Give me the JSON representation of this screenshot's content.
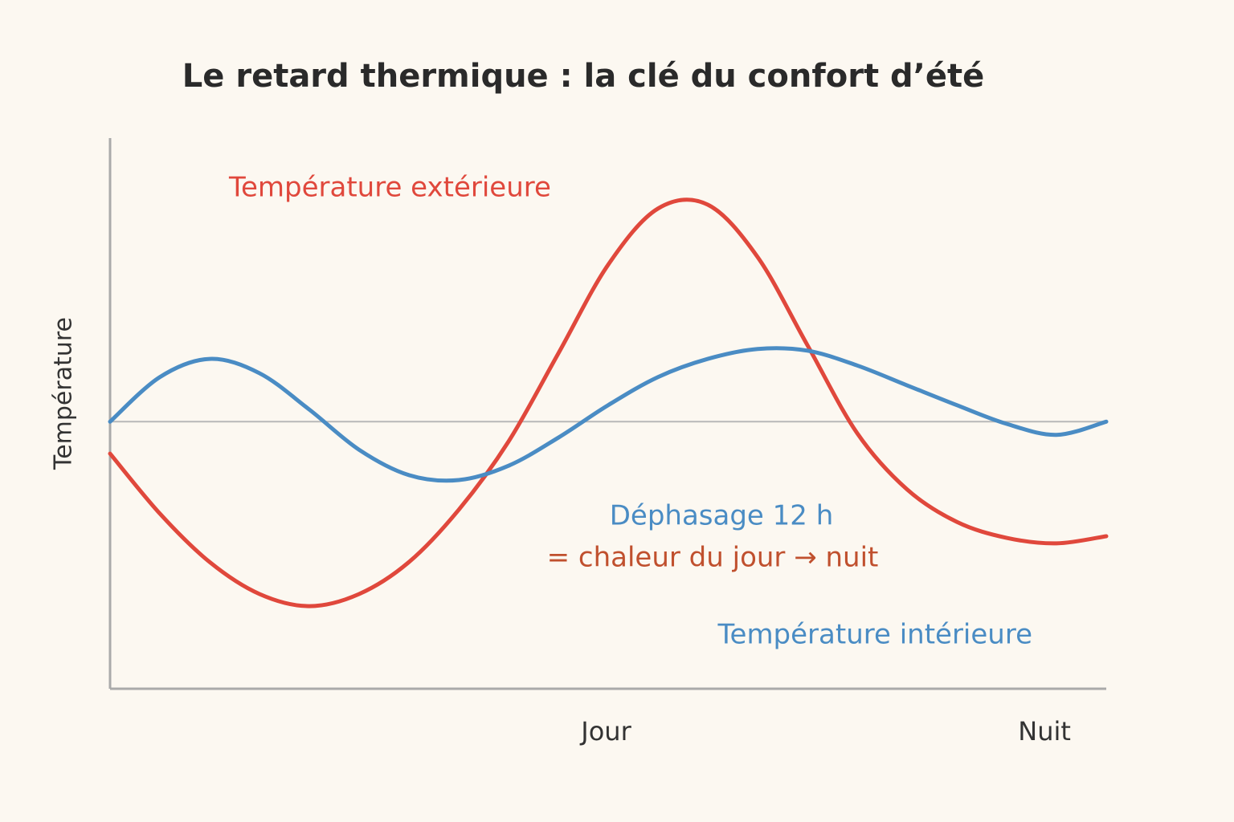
{
  "chart_data": {
    "type": "line",
    "title": "Le retard thermique : la clé du confort d’été",
    "y_label": "Température",
    "x": [
      0,
      5,
      10,
      15,
      20,
      25,
      30,
      35,
      40,
      45,
      50,
      55,
      60,
      65,
      70,
      75,
      80,
      85,
      90,
      95,
      100
    ],
    "xlim": [
      0,
      100
    ],
    "ylim": [
      0,
      100
    ],
    "xticks": [
      {
        "value": 49.8,
        "label": "Jour"
      },
      {
        "value": 93.8,
        "label": "Nuit"
      }
    ],
    "reference_line": 48.5,
    "series": [
      {
        "name": "Température extérieure",
        "color": "#e0483c",
        "values": [
          42.7,
          31.8,
          23.0,
          17.2,
          15.0,
          17.2,
          23.0,
          32.5,
          44.9,
          60.9,
          77.0,
          87.2,
          87.9,
          78.4,
          62.4,
          46.4,
          36.2,
          30.3,
          27.4,
          26.4,
          27.7
        ]
      },
      {
        "name": "Température intérieure",
        "color": "#4a8cc4",
        "values": [
          48.5,
          56.6,
          59.9,
          57.3,
          50.7,
          43.4,
          38.8,
          37.9,
          40.5,
          45.6,
          51.5,
          56.6,
          59.9,
          61.7,
          61.4,
          58.7,
          55.1,
          51.5,
          48.1,
          46.1,
          48.5
        ]
      }
    ],
    "annotations": [
      {
        "text": "Déphasage 12 h",
        "color": "#4a8cc4"
      },
      {
        "text": "= chaleur du jour → nuit",
        "color": "#c0502e"
      }
    ]
  }
}
